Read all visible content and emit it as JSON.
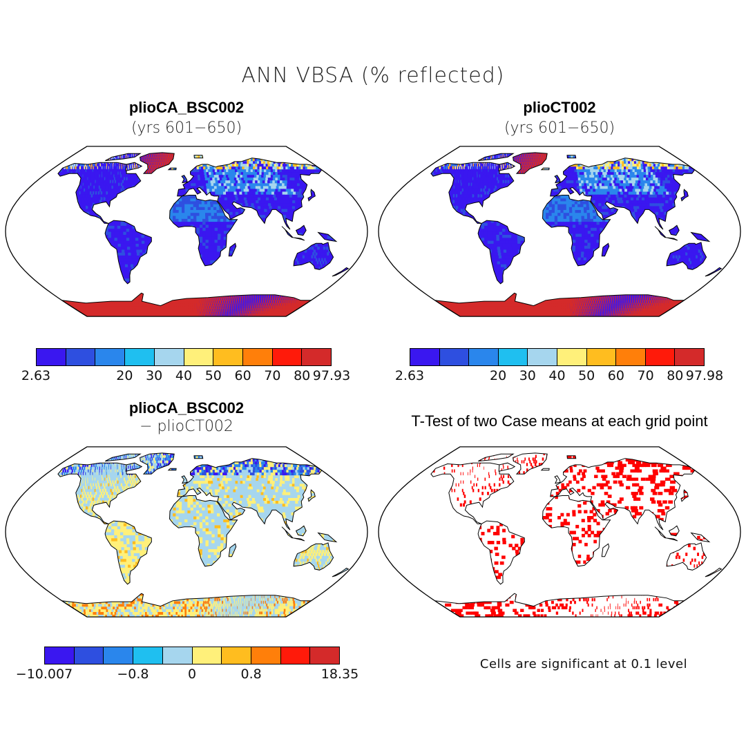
{
  "figure": {
    "title": "ANN VBSA (% reflected)"
  },
  "panels": [
    {
      "id": "caseA",
      "title": "plioCA_BSC002",
      "subtitle": "(yrs 601−650)",
      "field": "abs",
      "colorbar": {
        "colors": [
          "#3a17f0",
          "#2e4fe0",
          "#2a86ec",
          "#1fbff0",
          "#a6d6ee",
          "#fff07a",
          "#ffbd1f",
          "#ff7f0a",
          "#ff1a0a",
          "#d42a2a"
        ],
        "ticks": [
          "2.63",
          "20",
          "30",
          "40",
          "50",
          "60",
          "70",
          "80",
          "97.93"
        ]
      }
    },
    {
      "id": "caseB",
      "title": "plioCT002",
      "subtitle": "(yrs 601−650)",
      "field": "abs",
      "colorbar": {
        "colors": [
          "#3a17f0",
          "#2e4fe0",
          "#2a86ec",
          "#1fbff0",
          "#a6d6ee",
          "#fff07a",
          "#ffbd1f",
          "#ff7f0a",
          "#ff1a0a",
          "#d42a2a"
        ],
        "ticks": [
          "2.63",
          "20",
          "30",
          "40",
          "50",
          "60",
          "70",
          "80",
          "97.98"
        ]
      }
    },
    {
      "id": "diff",
      "title": "plioCA_BSC002",
      "subtitle": "− plioCT002",
      "field": "diff",
      "colorbar": {
        "colors": [
          "#3a17f0",
          "#2e4fe0",
          "#2a86ec",
          "#1fbff0",
          "#a6d6ee",
          "#fff07a",
          "#ffbd1f",
          "#ff7f0a",
          "#ff1a0a",
          "#d42a2a"
        ],
        "ticks": [
          "−10.007",
          "−0.8",
          "0",
          "0.8",
          "18.35"
        ]
      }
    },
    {
      "id": "ttest",
      "title": "T-Test of two Case means at each grid point",
      "note": "Cells are significant at 0.1 level",
      "field": "sig",
      "sig_color": "#ff0000"
    }
  ]
}
